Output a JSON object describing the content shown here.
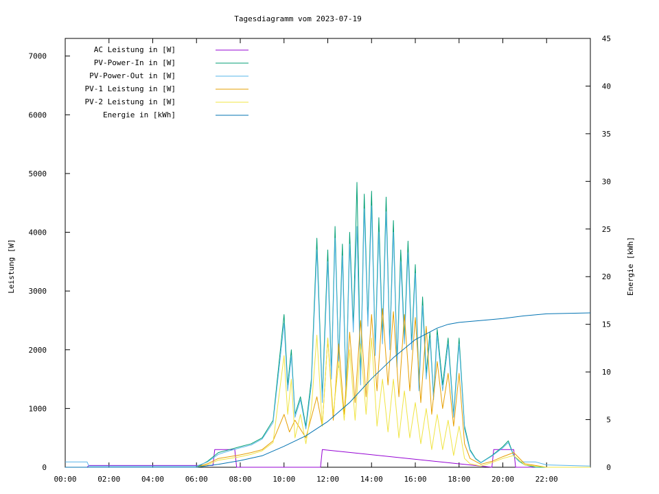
{
  "chart_data": {
    "type": "line",
    "title": "Tagesdiagramm vom 2023-07-19",
    "ylabel": "Leistung [W]",
    "y2label": "Energie [kWh]",
    "xlim": [
      "00:00",
      "24:00"
    ],
    "ylim": [
      0,
      7300
    ],
    "y2lim": [
      0,
      45
    ],
    "x_ticks": [
      "00:00",
      "02:00",
      "04:00",
      "06:00",
      "08:00",
      "10:00",
      "12:00",
      "14:00",
      "16:00",
      "18:00",
      "20:00",
      "22:00"
    ],
    "y_ticks": [
      0,
      1000,
      2000,
      3000,
      4000,
      5000,
      6000,
      7000
    ],
    "y2_ticks": [
      0,
      5,
      10,
      15,
      20,
      25,
      30,
      35,
      40,
      45
    ],
    "legend_position": "top-left",
    "grid": false,
    "series": [
      {
        "name": "AC Leistung in [W]",
        "color": "#9400d3",
        "axis": "left",
        "x": [
          "00:00",
          "01:00",
          "01:05",
          "06:00",
          "06:45",
          "06:50",
          "07:45",
          "07:50",
          "11:40",
          "11:45",
          "19:30",
          "19:35",
          "20:30",
          "20:35",
          "24:00"
        ],
        "y": [
          0,
          0,
          30,
          30,
          30,
          300,
          300,
          0,
          0,
          300,
          0,
          300,
          300,
          0,
          0
        ]
      },
      {
        "name": "PV-Power-In in [W]",
        "color": "#009e73",
        "axis": "left",
        "x": [
          "00:00",
          "06:00",
          "06:30",
          "07:00",
          "07:30",
          "08:00",
          "08:30",
          "09:00",
          "09:30",
          "10:00",
          "10:10",
          "10:20",
          "10:30",
          "10:45",
          "11:00",
          "11:15",
          "11:30",
          "11:45",
          "12:00",
          "12:10",
          "12:20",
          "12:30",
          "12:40",
          "12:50",
          "13:00",
          "13:10",
          "13:20",
          "13:30",
          "13:40",
          "13:50",
          "14:00",
          "14:10",
          "14:20",
          "14:30",
          "14:40",
          "14:50",
          "15:00",
          "15:10",
          "15:20",
          "15:30",
          "15:40",
          "15:50",
          "16:00",
          "16:10",
          "16:20",
          "16:30",
          "16:40",
          "16:50",
          "17:00",
          "17:15",
          "17:30",
          "17:45",
          "18:00",
          "18:15",
          "18:30",
          "18:45",
          "19:00",
          "19:30",
          "20:00",
          "20:15",
          "20:30",
          "20:45",
          "21:00",
          "21:30",
          "22:00",
          "24:00"
        ],
        "y": [
          0,
          0,
          100,
          250,
          300,
          350,
          400,
          500,
          800,
          2600,
          1400,
          2000,
          900,
          1200,
          700,
          1500,
          3900,
          1200,
          3700,
          1600,
          4100,
          1800,
          3800,
          1300,
          4000,
          2400,
          4850,
          1500,
          4650,
          2500,
          4700,
          2000,
          4250,
          2200,
          4600,
          2100,
          4200,
          1800,
          3700,
          2200,
          3850,
          2100,
          3450,
          1400,
          2900,
          1600,
          2300,
          1200,
          2350,
          1400,
          2200,
          900,
          2200,
          700,
          300,
          150,
          80,
          200,
          350,
          450,
          200,
          100,
          40,
          0,
          0,
          0
        ]
      },
      {
        "name": "PV-Power-Out in [W]",
        "color": "#56b4e9",
        "axis": "left",
        "x": [
          "00:00",
          "01:00",
          "01:05",
          "06:00",
          "06:30",
          "07:00",
          "07:30",
          "08:00",
          "08:30",
          "09:00",
          "09:30",
          "10:00",
          "10:10",
          "10:20",
          "10:30",
          "10:45",
          "11:00",
          "11:15",
          "11:30",
          "11:45",
          "12:00",
          "12:10",
          "12:20",
          "12:30",
          "12:40",
          "12:50",
          "13:00",
          "13:10",
          "13:20",
          "13:30",
          "13:40",
          "13:50",
          "14:00",
          "14:10",
          "14:20",
          "14:30",
          "14:40",
          "14:50",
          "15:00",
          "15:10",
          "15:20",
          "15:30",
          "15:40",
          "15:50",
          "16:00",
          "16:10",
          "16:20",
          "16:30",
          "16:40",
          "16:50",
          "17:00",
          "17:15",
          "17:30",
          "17:45",
          "18:00",
          "18:15",
          "18:30",
          "18:45",
          "19:00",
          "19:30",
          "20:00",
          "20:15",
          "20:30",
          "20:45",
          "21:00",
          "21:30",
          "22:00",
          "24:00"
        ],
        "y": [
          90,
          90,
          20,
          20,
          90,
          220,
          280,
          330,
          380,
          480,
          760,
          2450,
          1300,
          1900,
          850,
          1150,
          650,
          1400,
          3700,
          1100,
          3500,
          1500,
          3900,
          1700,
          3600,
          1200,
          3800,
          2300,
          4100,
          1400,
          4400,
          2400,
          4450,
          1900,
          4000,
          2100,
          4350,
          2000,
          4000,
          1700,
          3500,
          2100,
          3650,
          2000,
          3300,
          1300,
          2750,
          1500,
          2200,
          1150,
          2250,
          1300,
          2100,
          850,
          2100,
          650,
          280,
          140,
          75,
          190,
          330,
          420,
          190,
          95,
          90,
          90,
          40,
          20
        ]
      },
      {
        "name": "PV-1 Leistung in [W]",
        "color": "#e69f00",
        "axis": "left",
        "x": [
          "00:00",
          "06:00",
          "06:30",
          "07:00",
          "07:30",
          "08:00",
          "08:30",
          "09:00",
          "09:30",
          "10:00",
          "10:15",
          "10:30",
          "11:00",
          "11:30",
          "11:45",
          "12:00",
          "12:15",
          "12:30",
          "12:45",
          "13:00",
          "13:15",
          "13:30",
          "13:45",
          "14:00",
          "14:15",
          "14:30",
          "14:45",
          "15:00",
          "15:15",
          "15:30",
          "15:45",
          "16:00",
          "16:15",
          "16:30",
          "16:45",
          "17:00",
          "17:15",
          "17:30",
          "17:45",
          "18:00",
          "18:15",
          "18:30",
          "19:00",
          "19:30",
          "20:00",
          "20:30",
          "21:00",
          "22:00",
          "24:00"
        ],
        "y": [
          0,
          0,
          60,
          150,
          180,
          210,
          250,
          300,
          450,
          900,
          600,
          800,
          500,
          1200,
          700,
          2200,
          800,
          2100,
          900,
          2300,
          1100,
          2500,
          1200,
          2600,
          1300,
          2700,
          1400,
          2650,
          1200,
          2600,
          1300,
          2550,
          1100,
          2400,
          900,
          1800,
          1000,
          1600,
          700,
          1600,
          400,
          150,
          50,
          100,
          180,
          250,
          60,
          0,
          0
        ]
      },
      {
        "name": "PV-2 Leistung in [W]",
        "color": "#f0e442",
        "axis": "left",
        "x": [
          "00:00",
          "06:00",
          "06:30",
          "07:00",
          "07:30",
          "08:00",
          "08:30",
          "09:00",
          "09:30",
          "10:00",
          "10:10",
          "10:20",
          "10:30",
          "10:45",
          "11:00",
          "11:15",
          "11:30",
          "11:45",
          "12:00",
          "12:15",
          "12:30",
          "12:45",
          "13:00",
          "13:15",
          "13:30",
          "13:45",
          "14:00",
          "14:15",
          "14:30",
          "14:45",
          "15:00",
          "15:15",
          "15:30",
          "15:45",
          "16:00",
          "16:15",
          "16:30",
          "16:45",
          "17:00",
          "17:15",
          "17:30",
          "17:45",
          "18:00",
          "18:15",
          "18:30",
          "19:00",
          "19:30",
          "20:00",
          "20:30",
          "21:00",
          "22:00",
          "24:00"
        ],
        "y": [
          0,
          0,
          40,
          120,
          150,
          180,
          220,
          280,
          420,
          1900,
          900,
          1500,
          500,
          900,
          400,
          1000,
          2250,
          700,
          2200,
          900,
          1800,
          800,
          2000,
          800,
          2100,
          900,
          2200,
          700,
          1500,
          600,
          1500,
          500,
          1300,
          500,
          1100,
          400,
          1000,
          300,
          900,
          300,
          800,
          200,
          700,
          150,
          60,
          20,
          80,
          150,
          200,
          40,
          0,
          0
        ]
      },
      {
        "name": "Energie in [kWh]",
        "color": "#0072b2",
        "axis": "right",
        "x": [
          "00:00",
          "06:00",
          "07:00",
          "08:00",
          "09:00",
          "10:00",
          "11:00",
          "12:00",
          "13:00",
          "14:00",
          "15:00",
          "16:00",
          "17:00",
          "17:30",
          "18:00",
          "18:30",
          "19:00",
          "20:00",
          "21:00",
          "22:00",
          "24:00"
        ],
        "y": [
          0,
          0,
          0.3,
          0.7,
          1.2,
          2.2,
          3.3,
          4.8,
          6.8,
          9.3,
          11.5,
          13.4,
          14.6,
          15.0,
          15.2,
          15.3,
          15.4,
          15.6,
          15.9,
          16.1,
          16.2
        ]
      }
    ]
  }
}
